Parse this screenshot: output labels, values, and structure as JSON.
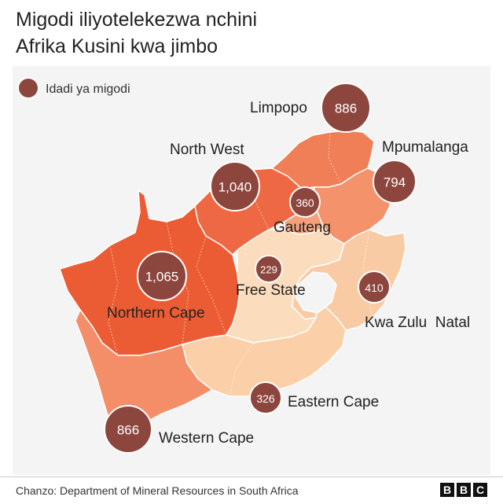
{
  "header": {
    "title_line1": "Migodi iliyotelekezwa nchini",
    "title_line2": "Afrika Kusini kwa jimbo"
  },
  "legend": {
    "label": "Idadi ya migodi",
    "marker_color": "#8c463e"
  },
  "provinces": [
    {
      "id": "limpopo",
      "name": "Limpopo",
      "mines": 886,
      "fill": "#f07e57"
    },
    {
      "id": "north-west",
      "name": "North West",
      "mines": 1040,
      "fill": "#ee6943"
    },
    {
      "id": "mpumalanga",
      "name": "Mpumalanga",
      "mines": 794,
      "fill": "#f3926b"
    },
    {
      "id": "gauteng",
      "name": "Gauteng",
      "mines": 360,
      "fill": "#f5a07b"
    },
    {
      "id": "northern-cape",
      "name": "Northern Cape",
      "mines": 1065,
      "fill": "#ec5c34"
    },
    {
      "id": "free-state",
      "name": "Free State",
      "mines": 229,
      "fill": "#fbdcbd"
    },
    {
      "id": "kwazulu-natal",
      "name": "Kwa Zulu  Natal",
      "mines": 410,
      "fill": "#f9cba4"
    },
    {
      "id": "eastern-cape",
      "name": "Eastern Cape",
      "mines": 326,
      "fill": "#fbd0a9"
    },
    {
      "id": "western-cape",
      "name": "Western Cape",
      "mines": 866,
      "fill": "#f48e69"
    }
  ],
  "footer": {
    "source": "Chanzo: Department of Mineral Resources in South Africa",
    "logo_letters": [
      "B",
      "B",
      "C"
    ]
  }
}
